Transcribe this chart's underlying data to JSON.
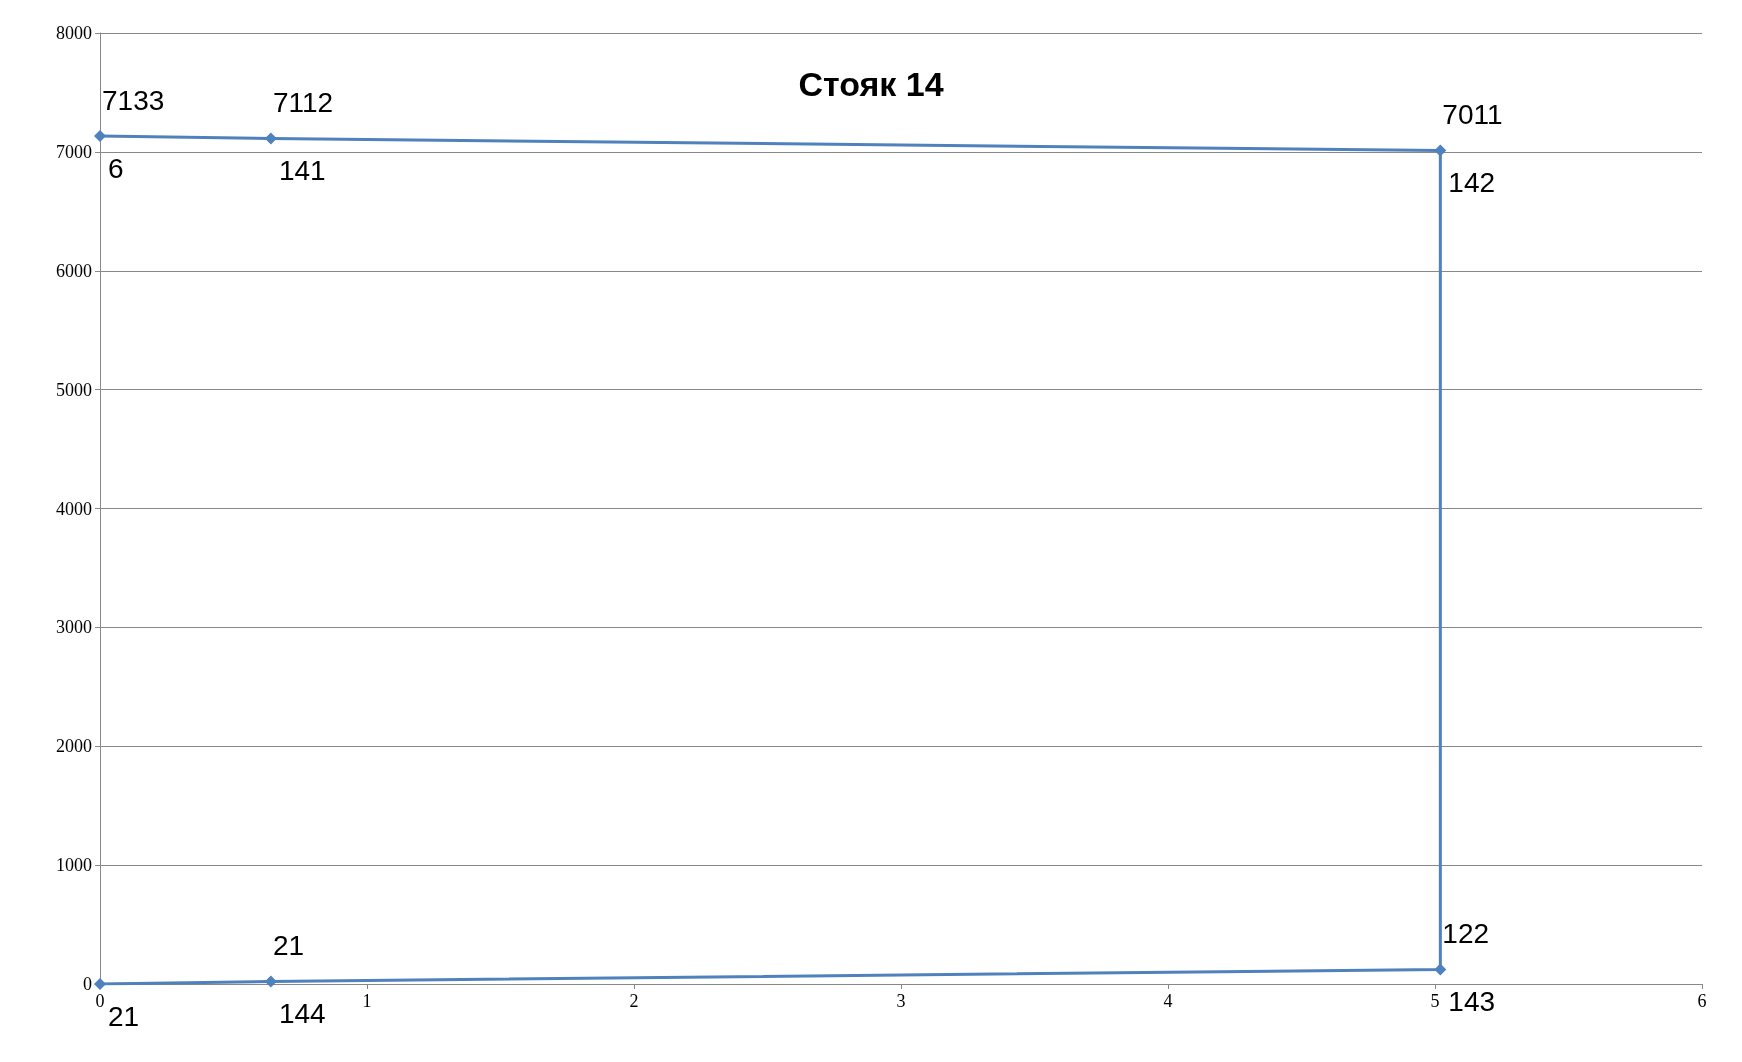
{
  "chart_data": {
    "type": "line",
    "title": "Стояк 14",
    "series": [
      {
        "color": "#4f81bd",
        "x": [
          0,
          0.64,
          5.02,
          5.02,
          0.64,
          0
        ],
        "values": [
          0,
          21,
          122,
          7011,
          7112,
          7133
        ],
        "value_labels": [
          null,
          "21",
          "122",
          "7011",
          "7112",
          "7133"
        ]
      }
    ],
    "xlim": [
      0,
      6
    ],
    "xticks": [
      0,
      1,
      2,
      3,
      4,
      5,
      6
    ],
    "ylim": [
      0,
      8000
    ],
    "yticks": [
      0,
      1000,
      2000,
      3000,
      4000,
      5000,
      6000,
      7000,
      8000
    ],
    "grid": "y",
    "marker": "diamond",
    "line_style": "solid",
    "annotations": [
      {
        "text": "21",
        "x": 0,
        "y": 0
      },
      {
        "text": "144",
        "x": 0.64,
        "y": 21
      },
      {
        "text": "143",
        "x": 5.02,
        "y": 122
      },
      {
        "text": "142",
        "x": 5.02,
        "y": 7011
      },
      {
        "text": "141",
        "x": 0.64,
        "y": 7112
      },
      {
        "text": "6",
        "x": 0,
        "y": 7133
      }
    ]
  }
}
